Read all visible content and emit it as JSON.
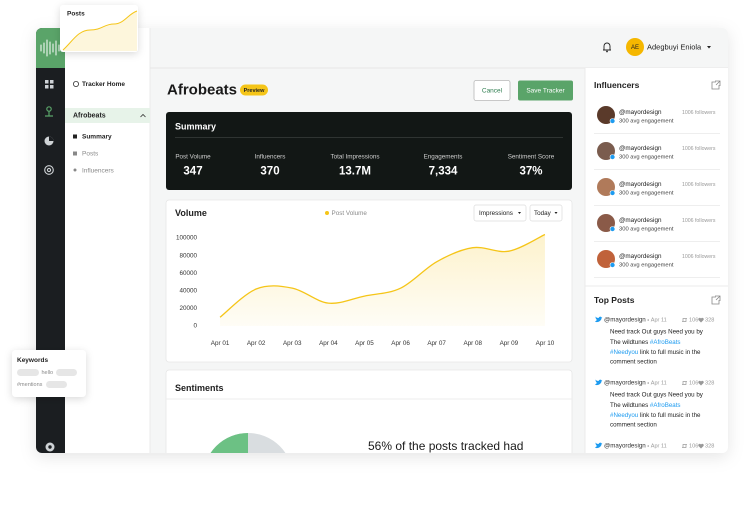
{
  "posts_card": {
    "title": "Posts"
  },
  "sidebar": {
    "home": "Tracker Home",
    "tracker": "Afrobeats",
    "items": [
      "Summary",
      "Posts",
      "Influencers"
    ]
  },
  "header": {
    "initials": "AE",
    "user_name": "Adegbuyi Eniola"
  },
  "page": {
    "title": "Afrobeats",
    "badge": "Preview",
    "cancel": "Cancel",
    "save": "Save Tracker"
  },
  "summary": {
    "title": "Summary",
    "stats": [
      {
        "label": "Post Volume",
        "value": "347"
      },
      {
        "label": "Influencers",
        "value": "370"
      },
      {
        "label": "Total Impressions",
        "value": "13.7M"
      },
      {
        "label": "Engagements",
        "value": "7,334"
      },
      {
        "label": "Sentiment Score",
        "value": "37%"
      }
    ]
  },
  "volume_controls": [
    "Impressions",
    "Today"
  ],
  "chart_data": {
    "type": "line",
    "title": "Volume",
    "categories": [
      "Apr 01",
      "Apr 02",
      "Apr 03",
      "Apr 04",
      "Apr 05",
      "Apr 06",
      "Apr 07",
      "Apr 08",
      "Apr 09",
      "Apr 10"
    ],
    "series": [
      {
        "name": "Post Volume",
        "color": "#f5c518",
        "values": [
          10000,
          42000,
          43000,
          26000,
          34000,
          43000,
          73000,
          89000,
          85000,
          104000
        ]
      }
    ],
    "ylim": [
      0,
      105000
    ],
    "yticks": [
      0,
      20000,
      40000,
      60000,
      80000,
      100000
    ],
    "grid": false,
    "area": true
  },
  "sentiments": {
    "title": "Sentiments",
    "text": "56% of the posts tracked had"
  },
  "influencers": {
    "title": "Influencers",
    "rows": [
      {
        "name": "@mayordesign",
        "followers": "1006 followers",
        "engagement": "300 avg engagement"
      },
      {
        "name": "@mayordesign",
        "followers": "1006 followers",
        "engagement": "300 avg engagement"
      },
      {
        "name": "@mayordesign",
        "followers": "1006 followers",
        "engagement": "300 avg engagement"
      },
      {
        "name": "@mayordesign",
        "followers": "1006 followers",
        "engagement": "300 avg engagement"
      },
      {
        "name": "@mayordesign",
        "followers": "1006 followers",
        "engagement": "300 avg engagement"
      }
    ]
  },
  "top_posts": {
    "title": "Top Posts",
    "posts": [
      {
        "handle": "@mayordesign",
        "date": "Apr 11",
        "retweets": "106",
        "likes": "328",
        "lines": [
          "Need track Out guys  Need you by",
          "The wildtunes #AfroBeats",
          "#Needyou link to full music in the",
          "comment section"
        ]
      },
      {
        "handle": "@mayordesign",
        "date": "Apr 11",
        "retweets": "106",
        "likes": "328",
        "lines": [
          "Need track Out guys  Need you by",
          "The wildtunes #AfroBeats",
          "#Needyou link to full music in the",
          "comment section"
        ]
      },
      {
        "handle": "@mayordesign",
        "date": "Apr 11",
        "retweets": "106",
        "likes": "328",
        "lines": []
      }
    ]
  },
  "keywords_card": {
    "title": "Keywords",
    "tags": [
      "hello",
      "#mentions"
    ]
  }
}
